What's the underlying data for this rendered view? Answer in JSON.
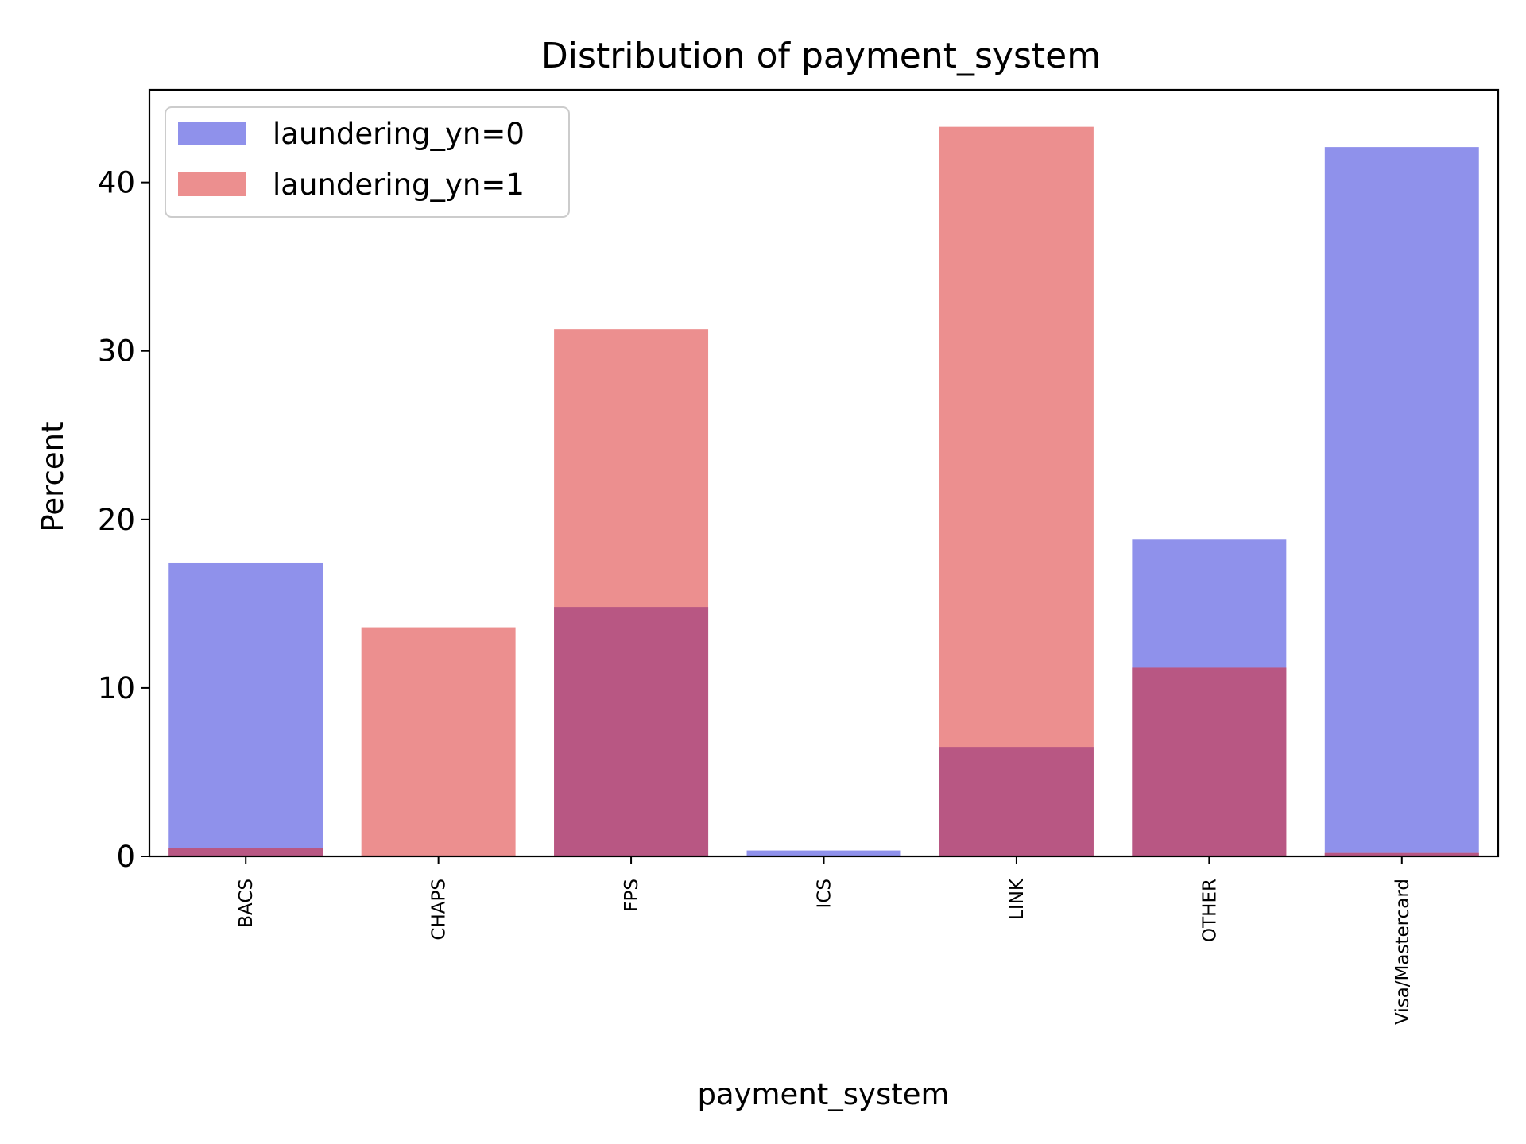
{
  "chart_data": {
    "type": "bar",
    "title": "Distribution of payment_system",
    "xlabel": "payment_system",
    "ylabel": "Percent",
    "categories": [
      "BACS",
      "CHAPS",
      "FPS",
      "ICS",
      "LINK",
      "OTHER",
      "Visa/Mastercard"
    ],
    "series": [
      {
        "name": "laundering_yn=0",
        "color": "#8f91eb",
        "values": [
          17.4,
          0.05,
          14.8,
          0.35,
          6.5,
          18.8,
          42.1
        ]
      },
      {
        "name": "laundering_yn=1",
        "color": "#ec8f8f",
        "values": [
          0.5,
          13.6,
          31.3,
          0.0,
          43.3,
          11.2,
          0.2
        ]
      }
    ],
    "overlap_color": "#b85783",
    "ylim": [
      0,
      45.5
    ],
    "yticks": [
      0,
      10,
      20,
      30,
      40
    ],
    "grid": false,
    "legend_position": "upper left"
  }
}
